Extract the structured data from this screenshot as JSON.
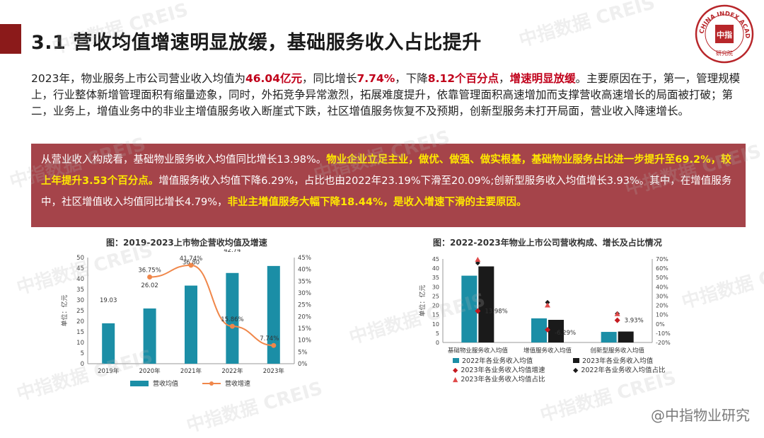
{
  "title": "3.1 营收均值增速明显放缓，基础服务收入占比提升",
  "seal": {
    "outer_text": "CHINA INDEX ACADEMY",
    "center_text": "中指",
    "bottom_text": "研究院"
  },
  "paragraph": {
    "p1": "2023年，物业服务上市公司营业收入均值为",
    "h1": "46.04亿元",
    "p2": "，同比增长",
    "h2": "7.74%",
    "p3": "，下降",
    "h3": "8.12个百分点",
    "p4": "，",
    "h4": "增速明显放缓",
    "p5": "。主要原因在于，第一，管理规模上，行业整体新增管理面积有缩量迹象，同时，外拓竞争异常激烈，拓展难度提升，依靠管理面积高速增加而支撑营收高速增长的局面被打破；第二，业务上，增值业务中的非业主增值服务收入断崖式下跌，社区增值服务恢复不及预期，创新型服务未打开局面，营业收入降速增长。"
  },
  "callout": {
    "t1": "从营业收入构成看，基础物业服务收入均值同比增长13.98%。",
    "y1": "物业企业立足主业，做优、做强、做实根基，基础物业服务占比进一步提升至69.2%，较上年提升3.53个百分点。",
    "t2": "增值服务收入均值下降6.29%，占比也由2022年23.19%下滑至20.09%;创新型服务收入均值增长3.93%。其中，在增值服务中，社区增值收入均值同比增长4.79%，",
    "y2": "非业主增值服务大幅下降18.44%，是收入增速下滑的主要原因。"
  },
  "watermark_text": "中指数据 CREIS",
  "footer": "@中指物业研究",
  "colors": {
    "teal": "#1b8ea6",
    "orange": "#f0874a",
    "dark_red": "#a5444a",
    "crimson": "#c41a20",
    "black": "#1a1a1a",
    "pink": "#e04a4a"
  },
  "chart_data": [
    {
      "type": "bar",
      "title": "图：2019-2023上市物企营收均值及增速",
      "categories": [
        "2019年",
        "2020年",
        "2021年",
        "2022年",
        "2023年"
      ],
      "ylabel": "单位：亿元",
      "ylim": [
        0,
        50
      ],
      "yticks": [
        "0",
        "5",
        "10",
        "15",
        "20",
        "25",
        "30",
        "35",
        "40",
        "45",
        "50"
      ],
      "y2lim": [
        0,
        45
      ],
      "y2ticks": [
        "0%",
        "5%",
        "10%",
        "15%",
        "20%",
        "25%",
        "30%",
        "35%",
        "40%",
        "45%"
      ],
      "series": [
        {
          "name": "营收均值",
          "type": "bar",
          "values": [
            19.03,
            26.02,
            36.8,
            42.74,
            46.04
          ],
          "labels": [
            "19.03",
            "26.02",
            "36.80",
            "42.74",
            "46.04"
          ]
        },
        {
          "name": "营收增速",
          "type": "line",
          "axis": "right",
          "values": [
            null,
            36.75,
            41.74,
            15.86,
            7.74
          ],
          "labels": [
            "",
            "36.75%",
            "41.74%",
            "15.86%",
            "7.74%"
          ]
        }
      ],
      "legend": "bottom"
    },
    {
      "type": "bar",
      "title": "图：2022-2023年物业上市公司营收构成、增长及占比情况",
      "categories": [
        "基础物业服务收入均值",
        "增值服务收入均值",
        "创新型服务收入均值"
      ],
      "ylabel": "单位：亿元",
      "ylim": [
        0,
        45
      ],
      "yticks": [
        "0",
        "5",
        "10",
        "15",
        "20",
        "25",
        "30",
        "35",
        "40",
        "45"
      ],
      "y2lim": [
        -20,
        70
      ],
      "y2ticks": [
        "-20%",
        "-10%",
        "0%",
        "10%",
        "20%",
        "30%",
        "40%",
        "50%",
        "60%",
        "70%"
      ],
      "series": [
        {
          "name": "2022年各业务收入均值",
          "type": "bar",
          "values": [
            36.0,
            13.0,
            5.7
          ]
        },
        {
          "name": "2023年各业务收入均值",
          "type": "bar",
          "values": [
            41.0,
            12.2,
            5.9
          ]
        },
        {
          "name": "2023年各业务收入均值增速",
          "type": "marker",
          "axis": "right",
          "values": [
            13.98,
            -6.29,
            3.93
          ],
          "labels": [
            "13.98%",
            "-6.29%",
            "3.93%"
          ]
        },
        {
          "name": "2022年各业务收入均值占比",
          "type": "marker",
          "axis": "right",
          "values": [
            65.67,
            23.19,
            11.1
          ]
        },
        {
          "name": "2023年各业务收入均值占比",
          "type": "marker",
          "axis": "right",
          "values": [
            69.2,
            20.09,
            10.7
          ]
        }
      ],
      "legend": "bottom"
    }
  ]
}
